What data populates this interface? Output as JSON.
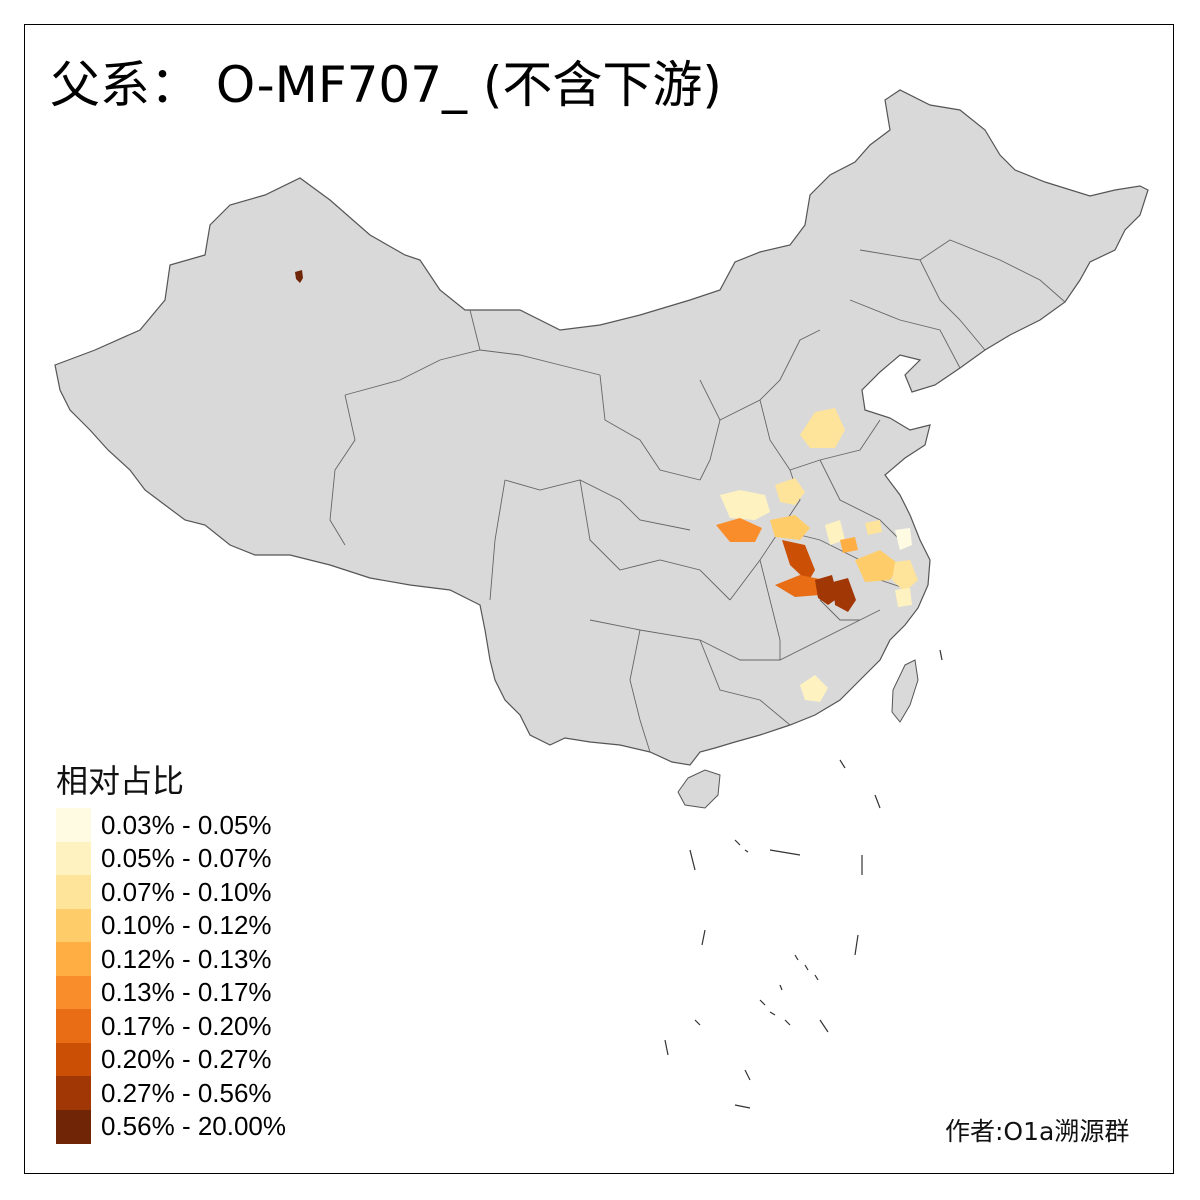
{
  "title": "父系： O-MF707_ (不含下游)",
  "legend": {
    "title": "相对占比",
    "items": [
      {
        "label": "0.03% - 0.05%",
        "color": "#fffbe3"
      },
      {
        "label": "0.05% - 0.07%",
        "color": "#fff2c1"
      },
      {
        "label": "0.07% - 0.10%",
        "color": "#fee39b"
      },
      {
        "label": "0.10% - 0.12%",
        "color": "#fecd69"
      },
      {
        "label": "0.12% - 0.13%",
        "color": "#feae43"
      },
      {
        "label": "0.13% - 0.17%",
        "color": "#f98d2b"
      },
      {
        "label": "0.17% - 0.20%",
        "color": "#e86d15"
      },
      {
        "label": "0.20% - 0.27%",
        "color": "#cc4f06"
      },
      {
        "label": "0.27% - 0.56%",
        "color": "#a13705"
      },
      {
        "label": "0.56% - 20.00%",
        "color": "#6f2506"
      }
    ]
  },
  "credit": "作者:O1a溯源群",
  "map_colors": {
    "land": "#d9d9d9",
    "border": "#555555"
  }
}
